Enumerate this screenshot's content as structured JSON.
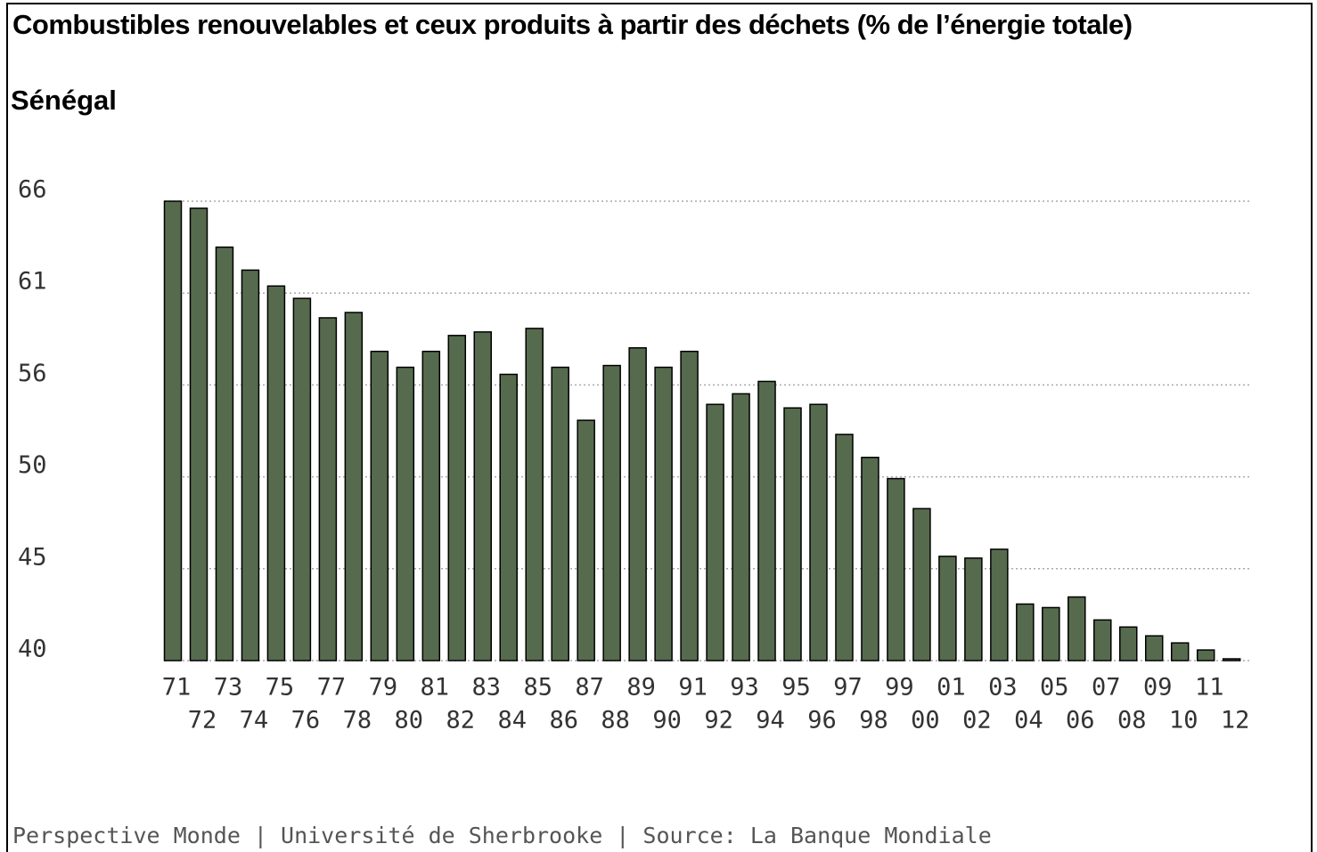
{
  "chart_data": {
    "type": "bar",
    "title": "Combustibles renouvelables et ceux produits à partir des déchets (% de l’énergie totale)",
    "subtitle": "Sénégal",
    "source": "Perspective Monde | Université de Sherbrooke | Source: La Banque Mondiale",
    "categories": [
      "71",
      "72",
      "73",
      "74",
      "75",
      "76",
      "77",
      "78",
      "79",
      "80",
      "81",
      "82",
      "83",
      "84",
      "85",
      "86",
      "87",
      "88",
      "89",
      "90",
      "91",
      "92",
      "93",
      "94",
      "95",
      "96",
      "97",
      "98",
      "99",
      "00",
      "01",
      "02",
      "03",
      "04",
      "05",
      "06",
      "07",
      "08",
      "09",
      "10",
      "11",
      "12"
    ],
    "values": [
      66.0,
      65.6,
      63.4,
      62.1,
      61.2,
      60.5,
      59.4,
      59.7,
      57.5,
      56.6,
      57.5,
      58.4,
      58.6,
      56.2,
      58.8,
      56.6,
      53.6,
      56.7,
      57.7,
      56.6,
      57.5,
      54.5,
      55.1,
      55.8,
      54.3,
      54.5,
      52.8,
      51.5,
      50.3,
      48.6,
      45.9,
      45.8,
      46.3,
      43.2,
      43.0,
      43.6,
      42.3,
      41.9,
      41.4,
      41.0,
      40.6,
      40.1
    ],
    "color": "#566b4e",
    "ylim": [
      40,
      66
    ],
    "yticks": [
      {
        "value": 40,
        "label": "40"
      },
      {
        "value": 45.2,
        "label": "45"
      },
      {
        "value": 50.4,
        "label": "50"
      },
      {
        "value": 55.6,
        "label": "56"
      },
      {
        "value": 60.8,
        "label": "61"
      },
      {
        "value": 66,
        "label": "66"
      }
    ],
    "grid": true
  }
}
